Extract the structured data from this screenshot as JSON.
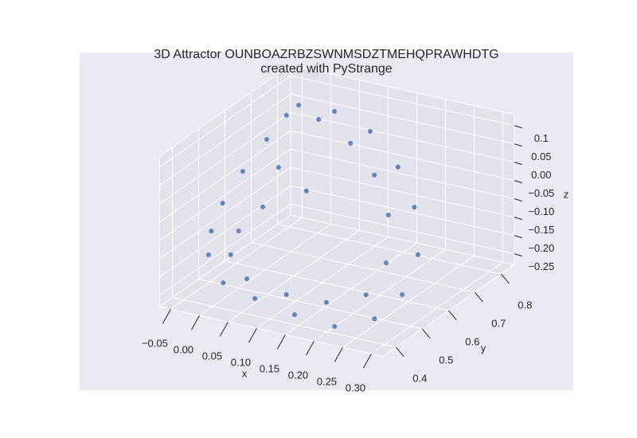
{
  "chart_data": {
    "type": "scatter3d",
    "title": "3D Attractor OUNBOAZRBZSWNMSDZTMEHQPRAWHDTG",
    "subtitle": "created with PyStrange",
    "xlabel": "x",
    "ylabel": "y",
    "zlabel": "z",
    "color": "#4c72b0",
    "grid": true,
    "xlim": [
      -0.07,
      0.32
    ],
    "ylim": [
      0.35,
      0.85
    ],
    "zlim": [
      -0.28,
      0.13
    ],
    "xticks": [
      {
        "value": -0.05,
        "label": "−0.05"
      },
      {
        "value": 0,
        "label": "0.00"
      },
      0.05,
      {
        "value": 0.1,
        "label": "0.10"
      },
      0.15,
      {
        "value": 0.2,
        "label": "0.20"
      },
      0.25,
      {
        "value": 0.3,
        "label": "0.30"
      }
    ],
    "yticks": [
      0.4,
      0.5,
      0.6,
      0.7,
      0.8
    ],
    "zticks": [
      0.1,
      0.05,
      {
        "value": 0,
        "label": "0.00"
      },
      {
        "value": -0.05,
        "label": "−0.05"
      },
      {
        "value": -0.1,
        "label": "−0.10"
      },
      {
        "value": -0.15,
        "label": "−0.15"
      },
      {
        "value": -0.2,
        "label": "−0.20"
      },
      {
        "value": -0.25,
        "label": "−0.25"
      }
    ],
    "x": [
      -0.033,
      0.034,
      0.11,
      0.186,
      0.242,
      0.285,
      0.285,
      0.255,
      0.213,
      0.134,
      0.051,
      -0.018,
      -0.062,
      -0.048,
      -0.051,
      -0.048,
      -0.043,
      -0.036,
      0.094,
      0.154,
      0.206,
      0.234,
      0.222,
      0.162,
      0.083,
      0.005,
      -0.037,
      -0.037,
      -0.004,
      0.063,
      -0.004,
      0.011
    ],
    "y": [
      0.8,
      0.79,
      0.76,
      0.7,
      0.64,
      0.56,
      0.5,
      0.46,
      0.4,
      0.42,
      0.45,
      0.48,
      0.52,
      0.5,
      0.55,
      0.62,
      0.7,
      0.76,
      0.72,
      0.68,
      0.62,
      0.55,
      0.5,
      0.48,
      0.5,
      0.52,
      0.55,
      0.58,
      0.6,
      0.62,
      0.66,
      0.78
    ],
    "z": [
      0.058,
      0.069,
      0.056,
      0.015,
      -0.045,
      -0.12,
      -0.199,
      -0.255,
      -0.261,
      -0.266,
      -0.266,
      -0.262,
      -0.221,
      -0.141,
      -0.091,
      -0.038,
      0.011,
      0.049,
      0.038,
      -0.008,
      -0.069,
      -0.155,
      -0.221,
      -0.253,
      -0.269,
      -0.263,
      -0.227,
      -0.177,
      -0.11,
      -0.053,
      -0.032,
      0.044
    ]
  }
}
